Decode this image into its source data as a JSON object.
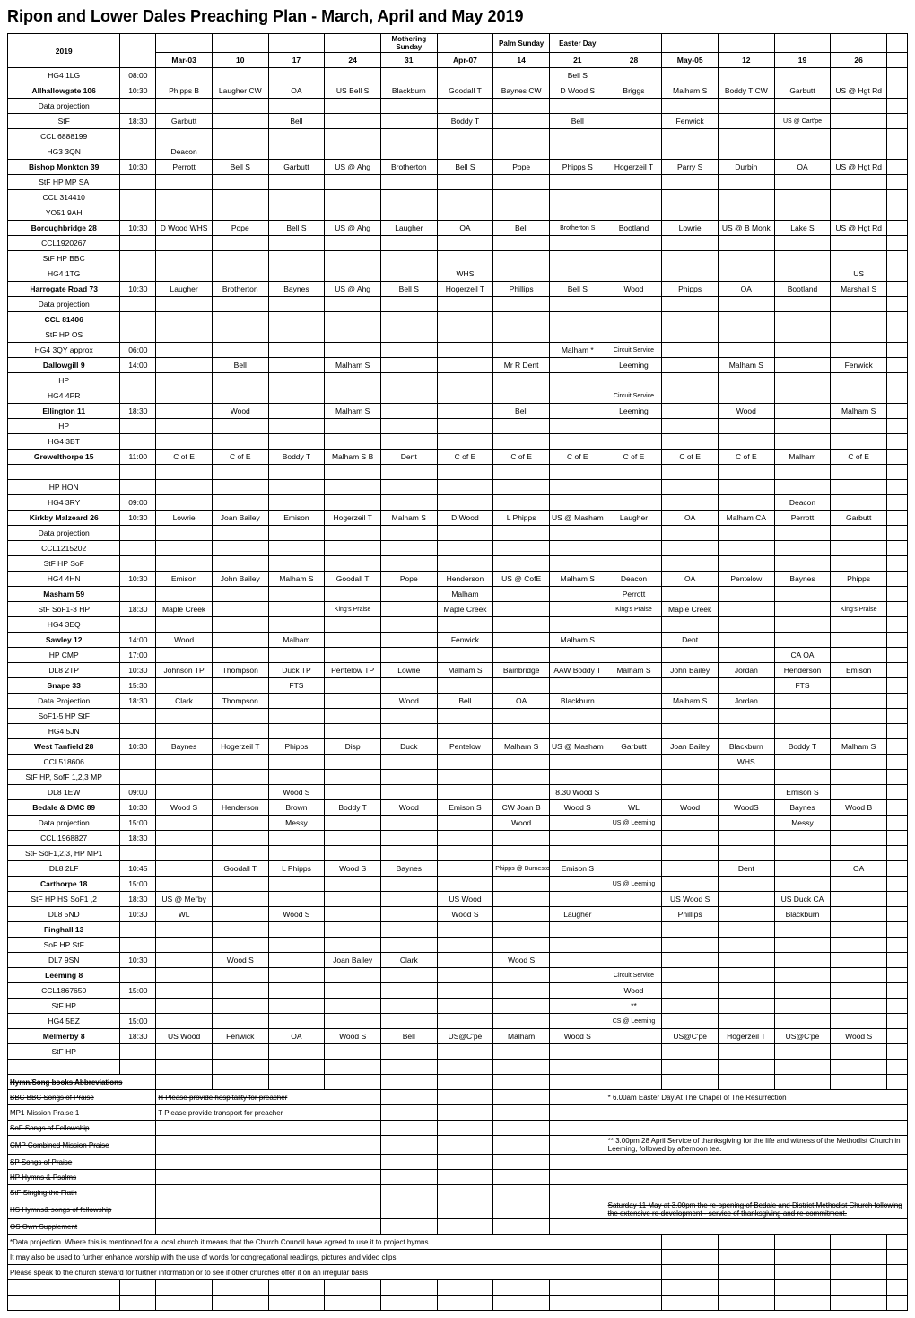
{
  "title": "Ripon and Lower Dales Preaching Plan - March, April and May 2019",
  "header": {
    "year": "2019",
    "mothering": "Mothering Sunday",
    "palm": "Palm Sunday",
    "easter": "Easter Day",
    "dates": [
      "Mar-03",
      "10",
      "17",
      "24",
      "31",
      "Apr-07",
      "14",
      "21",
      "28",
      "May-05",
      "12",
      "19",
      "26"
    ]
  },
  "rows": [
    {
      "loc": "HG4 1LG",
      "time": "08:00",
      "c": [
        "",
        "",
        "",
        "",
        "",
        "",
        "",
        "Bell S",
        "",
        "",
        "",
        "",
        ""
      ]
    },
    {
      "loc": "Allhallowgate 106",
      "time": "10:30",
      "b": 1,
      "c": [
        "Phipps B",
        "Laugher CW",
        "OA",
        "US Bell S",
        "Blackburn",
        "Goodall T",
        "Baynes CW",
        "D Wood S",
        "Briggs",
        "Malham S",
        "Boddy T CW",
        "Garbutt",
        "US @ Hgt Rd"
      ]
    },
    {
      "loc": "Data projection",
      "time": "",
      "c": [
        "",
        "",
        "",
        "",
        "",
        "",
        "",
        "",
        "",
        "",
        "",
        "",
        ""
      ]
    },
    {
      "loc": "StF",
      "time": "18:30",
      "c": [
        "Garbutt",
        "",
        "Bell",
        "",
        "",
        "Boddy T",
        "",
        "Bell",
        "",
        "Fenwick",
        "",
        "US @ Cart'pe",
        ""
      ]
    },
    {
      "loc": "CCL 6888199",
      "time": "",
      "c": [
        "",
        "",
        "",
        "",
        "",
        "",
        "",
        "",
        "",
        "",
        "",
        "",
        ""
      ]
    },
    {
      "loc": "HG3 3QN",
      "time": "",
      "c": [
        "Deacon",
        "",
        "",
        "",
        "",
        "",
        "",
        "",
        "",
        "",
        "",
        "",
        ""
      ]
    },
    {
      "loc": "Bishop Monkton 39",
      "time": "10:30",
      "b": 1,
      "c": [
        "Perrott",
        "Bell S",
        "Garbutt",
        "US @ Ahg",
        "Brotherton",
        "Bell S",
        "Pope",
        "Phipps S",
        "Hogerzeil T",
        "Parry S",
        "Durbin",
        "OA",
        "US @ Hgt Rd"
      ]
    },
    {
      "loc": "StF HP MP SA",
      "time": "",
      "c": [
        "",
        "",
        "",
        "",
        "",
        "",
        "",
        "",
        "",
        "",
        "",
        "",
        ""
      ]
    },
    {
      "loc": "CCL 314410",
      "time": "",
      "c": [
        "",
        "",
        "",
        "",
        "",
        "",
        "",
        "",
        "",
        "",
        "",
        "",
        ""
      ]
    },
    {
      "loc": "YO51 9AH",
      "time": "",
      "c": [
        "",
        "",
        "",
        "",
        "",
        "",
        "",
        "",
        "",
        "",
        "",
        "",
        ""
      ]
    },
    {
      "loc": "Boroughbridge 28",
      "time": "10:30",
      "b": 1,
      "c": [
        "D Wood WHS",
        "Pope",
        "Bell S",
        "US @ Ahg",
        "Laugher",
        "OA",
        "Bell",
        "Brotherton S",
        "Bootland",
        "Lowrie",
        "US @ B Monk",
        "Lake S",
        "US @ Hgt Rd"
      ]
    },
    {
      "loc": "CCL1920267",
      "time": "",
      "c": [
        "",
        "",
        "",
        "",
        "",
        "",
        "",
        "",
        "",
        "",
        "",
        "",
        ""
      ]
    },
    {
      "loc": "StF HP BBC",
      "time": "",
      "c": [
        "",
        "",
        "",
        "",
        "",
        "",
        "",
        "",
        "",
        "",
        "",
        "",
        ""
      ]
    },
    {
      "loc": "HG4 1TG",
      "time": "",
      "c": [
        "",
        "",
        "",
        "",
        "",
        "WHS",
        "",
        "",
        "",
        "",
        "",
        "",
        "US"
      ]
    },
    {
      "loc": "Harrogate Road 73",
      "time": "10:30",
      "b": 1,
      "c": [
        "Laugher",
        "Brotherton",
        "Baynes",
        "US @ Ahg",
        "Bell S",
        "Hogerzeil T",
        "Phillips",
        "Bell S",
        "Wood",
        "Phipps",
        "OA",
        "Bootland",
        "Marshall S"
      ]
    },
    {
      "loc": "Data projection",
      "time": "",
      "c": [
        "",
        "",
        "",
        "",
        "",
        "",
        "",
        "",
        "",
        "",
        "",
        "",
        ""
      ]
    },
    {
      "loc": "CCL 81406",
      "time": "",
      "b": 1,
      "c": [
        "",
        "",
        "",
        "",
        "",
        "",
        "",
        "",
        "",
        "",
        "",
        "",
        ""
      ]
    },
    {
      "loc": "StF HP OS",
      "time": "",
      "c": [
        "",
        "",
        "",
        "",
        "",
        "",
        "",
        "",
        "",
        "",
        "",
        "",
        ""
      ]
    },
    {
      "loc": "HG4 3QY approx",
      "time": "06:00",
      "c": [
        "",
        "",
        "",
        "",
        "",
        "",
        "",
        "Malham *",
        "Circuit Service",
        "",
        "",
        "",
        ""
      ]
    },
    {
      "loc": "Dallowgill 9",
      "time": "14:00",
      "b": 1,
      "c": [
        "",
        "Bell",
        "",
        "Malham S",
        "",
        "",
        "Mr R Dent",
        "",
        "Leeming",
        "",
        "Malham S",
        "",
        "Fenwick"
      ]
    },
    {
      "loc": "HP",
      "time": "",
      "c": [
        "",
        "",
        "",
        "",
        "",
        "",
        "",
        "",
        "",
        "",
        "",
        "",
        ""
      ]
    },
    {
      "loc": "HG4 4PR",
      "time": "",
      "c": [
        "",
        "",
        "",
        "",
        "",
        "",
        "",
        "",
        "Circuit Service",
        "",
        "",
        "",
        ""
      ]
    },
    {
      "loc": "Ellington 11",
      "time": "18:30",
      "b": 1,
      "c": [
        "",
        "Wood",
        "",
        "Malham S",
        "",
        "",
        "Bell",
        "",
        "Leeming",
        "",
        "Wood",
        "",
        "Malham S"
      ]
    },
    {
      "loc": "HP",
      "time": "",
      "c": [
        "",
        "",
        "",
        "",
        "",
        "",
        "",
        "",
        "",
        "",
        "",
        "",
        ""
      ]
    },
    {
      "loc": "HG4 3BT",
      "time": "",
      "c": [
        "",
        "",
        "",
        "",
        "",
        "",
        "",
        "",
        "",
        "",
        "",
        "",
        ""
      ]
    },
    {
      "loc": "Grewelthorpe 15",
      "time": "11:00",
      "b": 1,
      "c": [
        "C of E",
        "C of E",
        "Boddy T",
        "Malham S B",
        "Dent",
        "C of E",
        "C of E",
        "C of E",
        "C of E",
        "C of E",
        "C of E",
        "Malham",
        "C of E"
      ]
    },
    {
      "loc": "",
      "time": "",
      "c": [
        "",
        "",
        "",
        "",
        "",
        "",
        "",
        "",
        "",
        "",
        "",
        "",
        ""
      ]
    },
    {
      "loc": "HP HON",
      "time": "",
      "c": [
        "",
        "",
        "",
        "",
        "",
        "",
        "",
        "",
        "",
        "",
        "",
        "",
        ""
      ]
    },
    {
      "loc": "HG4 3RY",
      "time": "09:00",
      "c": [
        "",
        "",
        "",
        "",
        "",
        "",
        "",
        "",
        "",
        "",
        "",
        "Deacon",
        ""
      ]
    },
    {
      "loc": "Kirkby Malzeard 26",
      "time": "10:30",
      "b": 1,
      "c": [
        "Lowrie",
        "Joan Bailey",
        "Emison",
        "Hogerzeil T",
        "Malham S",
        "D Wood",
        "L Phipps",
        "US @ Masham",
        "Laugher",
        "OA",
        "Malham CA",
        "Perrott",
        "Garbutt"
      ]
    },
    {
      "loc": "Data projection",
      "time": "",
      "c": [
        "",
        "",
        "",
        "",
        "",
        "",
        "",
        "",
        "",
        "",
        "",
        "",
        ""
      ]
    },
    {
      "loc": "CCL1215202",
      "time": "",
      "c": [
        "",
        "",
        "",
        "",
        "",
        "",
        "",
        "",
        "",
        "",
        "",
        "",
        ""
      ]
    },
    {
      "loc": "StF HP SoF",
      "time": "",
      "c": [
        "",
        "",
        "",
        "",
        "",
        "",
        "",
        "",
        "",
        "",
        "",
        "",
        ""
      ]
    },
    {
      "loc": "HG4 4HN",
      "time": "10:30",
      "c": [
        "Emison",
        "John Bailey",
        "Malham S",
        "Goodall T",
        "Pope",
        "Henderson",
        "US @ CofE",
        "Malham S",
        "Deacon",
        "OA",
        "Pentelow",
        "Baynes",
        "Phipps"
      ]
    },
    {
      "loc": "Masham 59",
      "time": "",
      "b": 1,
      "c": [
        "",
        "",
        "",
        "",
        "",
        "Malham",
        "",
        "",
        "Perrott",
        "",
        "",
        "",
        ""
      ]
    },
    {
      "loc": "StF SoF1-3 HP",
      "time": "18:30",
      "c": [
        "Maple Creek",
        "",
        "",
        "King's Praise",
        "",
        "Maple Creek",
        "",
        "",
        "King's Praise",
        "Maple Creek",
        "",
        "",
        "King's Praise"
      ]
    },
    {
      "loc": "HG4 3EQ",
      "time": "",
      "c": [
        "",
        "",
        "",
        "",
        "",
        "",
        "",
        "",
        "",
        "",
        "",
        "",
        ""
      ]
    },
    {
      "loc": "Sawley 12",
      "time": "14:00",
      "b": 1,
      "c": [
        "Wood",
        "",
        "Malham",
        "",
        "",
        "Fenwick",
        "",
        "Malham S",
        "",
        "Dent",
        "",
        "",
        ""
      ]
    },
    {
      "loc": "HP CMP",
      "time": "17:00",
      "c": [
        "",
        "",
        "",
        "",
        "",
        "",
        "",
        "",
        "",
        "",
        "",
        "CA OA",
        ""
      ]
    },
    {
      "loc": "DL8 2TP",
      "time": "10:30",
      "c": [
        "Johnson TP",
        "Thompson",
        "Duck TP",
        "Pentelow TP",
        "Lowrie",
        "Malham S",
        "Bainbridge",
        "AAW Boddy T",
        "Malham S",
        "John Bailey",
        "Jordan",
        "Henderson",
        "Emison"
      ]
    },
    {
      "loc": "Snape 33",
      "time": "15:30",
      "b": 1,
      "c": [
        "",
        "",
        "FTS",
        "",
        "",
        "",
        "",
        "",
        "",
        "",
        "",
        "FTS",
        ""
      ]
    },
    {
      "loc": "Data Projection",
      "time": "18:30",
      "c": [
        "Clark",
        "Thompson",
        "",
        "",
        "Wood",
        "Bell",
        "OA",
        "Blackburn",
        "",
        "Malham S",
        "Jordan",
        "",
        ""
      ]
    },
    {
      "loc": "SoF1-5 HP StF",
      "time": "",
      "c": [
        "",
        "",
        "",
        "",
        "",
        "",
        "",
        "",
        "",
        "",
        "",
        "",
        ""
      ]
    },
    {
      "loc": "HG4 5JN",
      "time": "",
      "c": [
        "",
        "",
        "",
        "",
        "",
        "",
        "",
        "",
        "",
        "",
        "",
        "",
        ""
      ]
    },
    {
      "loc": "West Tanfield 28",
      "time": "10:30",
      "b": 1,
      "c": [
        "Baynes",
        "Hogerzeil T",
        "Phipps",
        "Disp",
        "Duck",
        "Pentelow",
        "Malham S",
        "US @ Masham",
        "Garbutt",
        "Joan Bailey",
        "Blackburn",
        "Boddy T",
        "Malham S"
      ]
    },
    {
      "loc": "CCL518606",
      "time": "",
      "c": [
        "",
        "",
        "",
        "",
        "",
        "",
        "",
        "",
        "",
        "",
        "WHS",
        "",
        ""
      ]
    },
    {
      "loc": "StF HP, SofF 1,2,3 MP",
      "time": "",
      "c": [
        "",
        "",
        "",
        "",
        "",
        "",
        "",
        "",
        "",
        "",
        "",
        "",
        ""
      ]
    },
    {
      "loc": "DL8 1EW",
      "time": "09:00",
      "c": [
        "",
        "",
        "Wood S",
        "",
        "",
        "",
        "",
        "8.30 Wood S",
        "",
        "",
        "",
        "Emison S",
        ""
      ]
    },
    {
      "loc": "Bedale & DMC 89",
      "time": "10:30",
      "b": 1,
      "c": [
        "Wood S",
        "Henderson",
        "Brown",
        "Boddy T",
        "Wood",
        "Emison S",
        "CW Joan B",
        "Wood S",
        "WL",
        "Wood",
        "WoodS",
        "Baynes",
        "Wood B"
      ]
    },
    {
      "loc": "Data projection",
      "time": "15:00",
      "c": [
        "",
        "",
        "Messy",
        "",
        "",
        "",
        "Wood",
        "",
        "US @ Leeming",
        "",
        "",
        "Messy",
        ""
      ]
    },
    {
      "loc": "CCL 1968827",
      "time": "18:30",
      "c": [
        "",
        "",
        "",
        "",
        "",
        "",
        "",
        "",
        "",
        "",
        "",
        "",
        ""
      ]
    },
    {
      "loc": "StF SoF1,2,3, HP MP1",
      "time": "",
      "c": [
        "",
        "",
        "",
        "",
        "",
        "",
        "",
        "",
        "",
        "",
        "",
        "",
        ""
      ]
    },
    {
      "loc": "DL8 2LF",
      "time": "10:45",
      "c": [
        "",
        "Goodall T",
        "L Phipps",
        "Wood S",
        "Baynes",
        "",
        "Phipps @ Burneston",
        "Emison S",
        "",
        "",
        "Dent",
        "",
        "OA"
      ]
    },
    {
      "loc": "Carthorpe 18",
      "time": "15:00",
      "b": 1,
      "c": [
        "",
        "",
        "",
        "",
        "",
        "",
        "",
        "",
        "US @ Leeming",
        "",
        "",
        "",
        ""
      ]
    },
    {
      "loc": "StF HP HS SoF1 ,2",
      "time": "18:30",
      "c": [
        "US @ Mel'by",
        "",
        "",
        "",
        "",
        "US Wood",
        "",
        "",
        "",
        "US Wood S",
        "",
        "US Duck CA",
        ""
      ]
    },
    {
      "loc": "DL8 5ND",
      "time": "10:30",
      "c": [
        "WL",
        "",
        "Wood S",
        "",
        "",
        "Wood S",
        "",
        "Laugher",
        "",
        "Phillips",
        "",
        "Blackburn",
        ""
      ]
    },
    {
      "loc": "Finghall 13",
      "time": "",
      "b": 1,
      "c": [
        "",
        "",
        "",
        "",
        "",
        "",
        "",
        "",
        "",
        "",
        "",
        "",
        ""
      ]
    },
    {
      "loc": "SoF HP StF",
      "time": "",
      "c": [
        "",
        "",
        "",
        "",
        "",
        "",
        "",
        "",
        "",
        "",
        "",
        "",
        ""
      ]
    },
    {
      "loc": "DL7 9SN",
      "time": "10:30",
      "c": [
        "",
        "Wood S",
        "",
        "Joan Bailey",
        "Clark",
        "",
        "Wood S",
        "",
        "",
        "",
        "",
        "",
        ""
      ]
    },
    {
      "loc": "Leeming 8",
      "time": "",
      "b": 1,
      "c": [
        "",
        "",
        "",
        "",
        "",
        "",
        "",
        "",
        "Circuit Service",
        "",
        "",
        "",
        ""
      ]
    },
    {
      "loc": "CCL1867650",
      "time": "15:00",
      "c": [
        "",
        "",
        "",
        "",
        "",
        "",
        "",
        "",
        "Wood",
        "",
        "",
        "",
        ""
      ]
    },
    {
      "loc": "StF HP",
      "time": "",
      "c": [
        "",
        "",
        "",
        "",
        "",
        "",
        "",
        "",
        "**",
        "",
        "",
        "",
        ""
      ]
    },
    {
      "loc": "HG4 5EZ",
      "time": "15:00",
      "c": [
        "",
        "",
        "",
        "",
        "",
        "",
        "",
        "",
        "CS @ Leeming",
        "",
        "",
        "",
        ""
      ]
    },
    {
      "loc": "Melmerby 8",
      "time": "18:30",
      "b": 1,
      "c": [
        "US Wood",
        "Fenwick",
        "OA",
        "Wood S",
        "Bell",
        "US@C'pe",
        "Malham",
        "Wood S",
        "",
        "US@C'pe",
        "Hogerzeil T",
        "US@C'pe",
        "Wood S"
      ]
    },
    {
      "loc": "StF HP",
      "time": "",
      "c": [
        "",
        "",
        "",
        "",
        "",
        "",
        "",
        "",
        "",
        "",
        "",
        "",
        ""
      ]
    }
  ],
  "abbrev": {
    "heading": "Hymn/Song books Abbreviations",
    "items": [
      {
        "k": "BBC BBC Songs of Praise",
        "v": "H Please provide hospitality for preacher"
      },
      {
        "k": "MP1  Mission Praise 1",
        "v": "T Please provide transport for preacher"
      },
      {
        "k": "SoF Songs of Fellowship",
        "v": ""
      },
      {
        "k": "CMP  Combined Mission Praise",
        "v": ""
      },
      {
        "k": "SP    Songs of Praise",
        "v": ""
      },
      {
        "k": "HP Hymns & Psalms",
        "v": ""
      },
      {
        "k": "StF Singing the Fiath",
        "v": ""
      },
      {
        "k": "HS Hymns& songs of fellowship",
        "v": ""
      },
      {
        "k": "OS  Own Supplement",
        "v": ""
      }
    ]
  },
  "rightnotes": [
    "*  6.00am Easter Day  At The Chapel of The Resurrection",
    "** 3.00pm 28 April  Service of thanksgiving for the life and witness of the Methodist Church in Leeming, followed by afternoon tea.",
    "Saturday 11 May at 3.00pm the re-opening of Bedale and District Methodist Church following the extensive re-development - service of thanksgiving and re-commitment."
  ],
  "footer": [
    "*Data projection. Where this is mentioned for a local church it means that the Church Council have agreed to use it to project hymns.",
    "It may also be used to further enhance worship with the use of words for congregational readings, pictures and video clips.",
    "Please speak to the church steward for further information or to see if other churches offer it on an irregular basis"
  ]
}
